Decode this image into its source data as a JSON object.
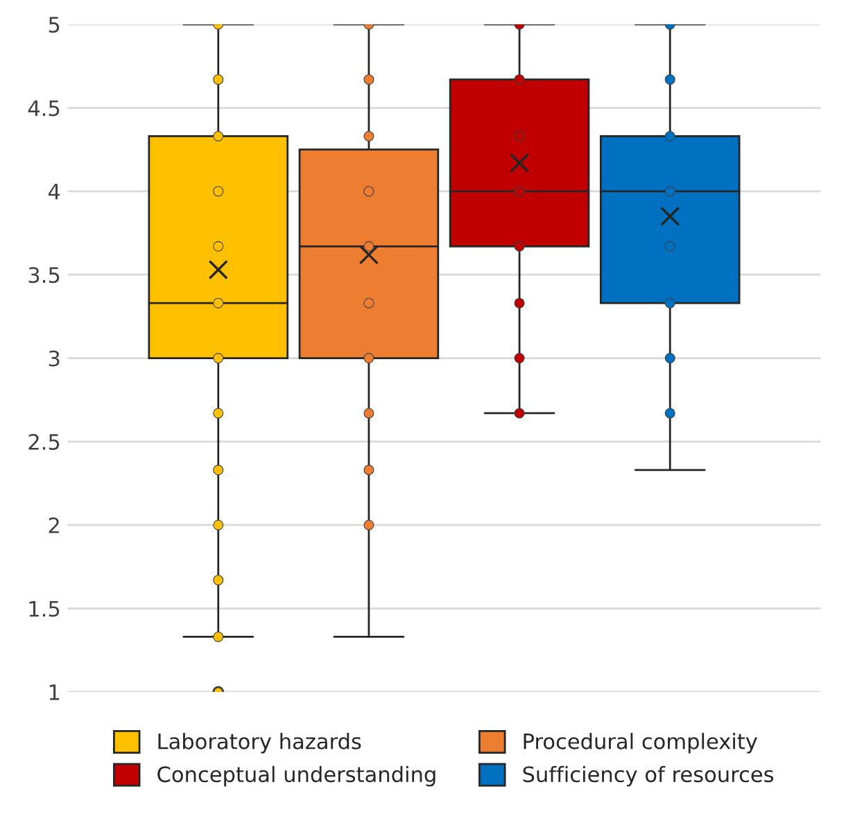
{
  "chart_data": {
    "type": "box",
    "categories": [
      null
    ],
    "ylim": [
      1,
      5
    ],
    "yticks": [
      1,
      1.5,
      2,
      2.5,
      3,
      3.5,
      4,
      4.5,
      5
    ],
    "grid": "y",
    "legend": "bottom",
    "tick_labels": "y",
    "series": [
      {
        "name": "Laboratory hazards",
        "color": "#ffc000",
        "boxes": [
          {
            "low": 1.33,
            "q1": 3,
            "median": 3.33,
            "q3": 4.33,
            "high": 5,
            "mean": 3.53,
            "outliers": [
              1
            ]
          }
        ]
      },
      {
        "name": "Procedural complexity",
        "color": "#ed7d31",
        "boxes": [
          {
            "low": 1.33,
            "q1": 3,
            "median": 3.67,
            "q3": 4.25,
            "high": 5,
            "mean": 3.62
          }
        ]
      },
      {
        "name": "Conceptual understanding",
        "color": "#c00000",
        "boxes": [
          {
            "low": 2.67,
            "q1": 3.67,
            "median": 4,
            "q3": 4.67,
            "high": 5,
            "mean": 4.17
          }
        ]
      },
      {
        "name": "Sufficiency of resources",
        "color": "#0070c0",
        "boxes": [
          {
            "low": 2.33,
            "q1": 3.33,
            "median": 4,
            "q3": 4.33,
            "high": 5,
            "mean": 3.85
          }
        ]
      },
      {
        "type": "scatter",
        "color": "#ffc000",
        "x": [
          null,
          null,
          null,
          null,
          null,
          null,
          null,
          null,
          null,
          null,
          null,
          null
        ],
        "values": [
          5,
          4.67,
          4.33,
          4,
          3.67,
          3.33,
          3,
          2.67,
          2.33,
          2,
          1.67,
          1.33
        ]
      },
      {
        "type": "scatter",
        "color": "#ed7d31",
        "x": [
          null,
          null,
          null,
          null,
          null,
          null,
          null,
          null,
          null,
          null
        ],
        "values": [
          5,
          4.67,
          4.33,
          4,
          3.67,
          3.33,
          3,
          2.67,
          2.33,
          2
        ]
      },
      {
        "type": "scatter",
        "color": "#c00000",
        "x": [
          null,
          null,
          null,
          null,
          null,
          null,
          null,
          null
        ],
        "values": [
          5,
          4.67,
          4.33,
          4,
          3.67,
          3.33,
          3,
          2.67
        ]
      },
      {
        "type": "scatter",
        "color": "#0070c0",
        "x": [
          null,
          null,
          null,
          null,
          null,
          null,
          null,
          null
        ],
        "values": [
          5,
          4.67,
          4.33,
          4,
          3.67,
          3.33,
          3,
          2.67
        ]
      }
    ]
  }
}
